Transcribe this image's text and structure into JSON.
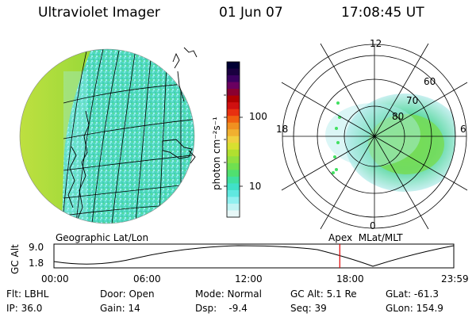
{
  "header": {
    "instrument": "Ultraviolet Imager",
    "date": "01 Jun 07",
    "time": "17:08:45 UT"
  },
  "colorbar": {
    "unit": "photon cm⁻²s⁻¹",
    "ticks": [
      "100",
      "10"
    ],
    "colors": [
      "#000033",
      "#1a0040",
      "#3a0060",
      "#6a0060",
      "#8a0030",
      "#b00000",
      "#d01010",
      "#e83010",
      "#f06010",
      "#f09020",
      "#f0b030",
      "#f0d040",
      "#d8e030",
      "#b0e030",
      "#90e040",
      "#70e050",
      "#50e070",
      "#40e0a0",
      "#40e0c8",
      "#60e8e0",
      "#90f0f0",
      "#c0f4f4",
      "#e8f8f8"
    ]
  },
  "left_panel": {
    "caption": "Geographic Lat/Lon"
  },
  "right_panel": {
    "caption": "Apex  MLat/MLT",
    "mlt_labels": [
      "12",
      "18",
      "6",
      "0"
    ],
    "mlat_labels": [
      "60",
      "70",
      "80"
    ]
  },
  "altitude_plot": {
    "ylabel": "GC Alt",
    "y_ticks": [
      "9.0",
      "1.8"
    ],
    "x_ticks": [
      "00:00",
      "06:00",
      "12:00",
      "18:00",
      "23:59"
    ],
    "marker_time": "17:08:45",
    "marker_color": "#e00000"
  },
  "info": [
    [
      "Flt: LBHL",
      "Door: Open",
      "Mode: Normal",
      "GC Alt: 5.1 Re",
      "GLat: -61.3"
    ],
    [
      "IP: 36.0",
      "Gain: 14",
      "Dsp:    -9.4",
      "Seq: 39",
      "GLon: 154.9"
    ]
  ]
}
